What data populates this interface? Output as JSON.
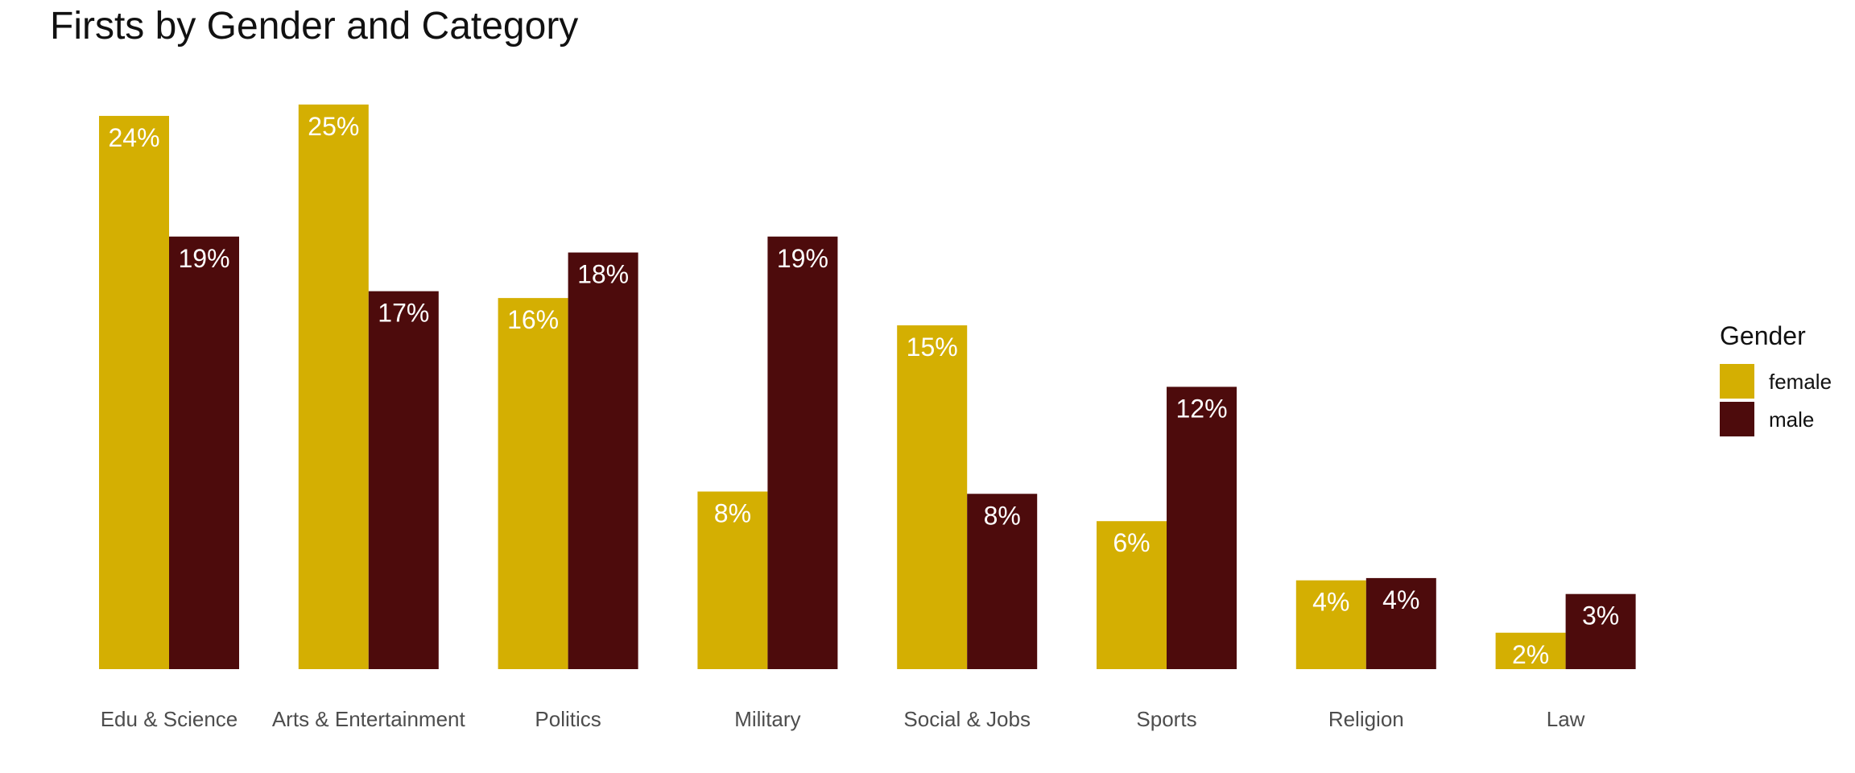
{
  "chart_data": {
    "type": "bar",
    "title": "Firsts by Gender and Category",
    "xlabel": "",
    "ylabel": "",
    "categories": [
      "Edu & Science",
      "Arts & Entertainment",
      "Politics",
      "Military",
      "Social & Jobs",
      "Sports",
      "Religion",
      "Law"
    ],
    "series": [
      {
        "name": "female",
        "color": "#D4AF02",
        "values": [
          24.3,
          24.8,
          16.3,
          7.8,
          15.1,
          6.5,
          3.9,
          1.6
        ],
        "labels": [
          "24%",
          "25%",
          "16%",
          "8%",
          "15%",
          "6%",
          "4%",
          "2%"
        ]
      },
      {
        "name": "male",
        "color": "#4D0B0C",
        "values": [
          19.0,
          16.6,
          18.3,
          19.0,
          7.7,
          12.4,
          4.0,
          3.3
        ],
        "labels": [
          "19%",
          "17%",
          "18%",
          "19%",
          "8%",
          "12%",
          "4%",
          "3%"
        ]
      }
    ],
    "ylim": [
      0,
      25.5
    ],
    "grid": false,
    "legend": {
      "title": "Gender",
      "position": "right"
    }
  }
}
